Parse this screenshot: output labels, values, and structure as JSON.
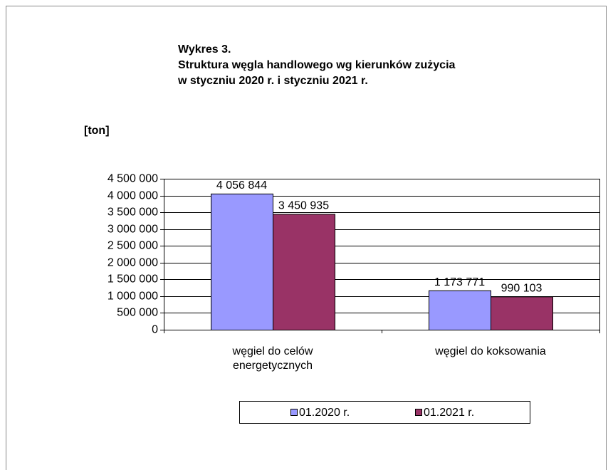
{
  "chart_data": {
    "type": "bar",
    "title": [
      "Wykres 3.",
      "Struktura węgla handlowego wg kierunków zużycia",
      "w styczniu 2020 r. i styczniu 2021 r."
    ],
    "y_label": "[ton]",
    "categories": [
      "węgiel do celów energetycznych",
      "węgiel do koksowania"
    ],
    "series": [
      {
        "name": "01.2020 r.",
        "color": "#9999ff",
        "values": [
          4056844,
          1173771
        ],
        "value_labels": [
          "4 056 844",
          "1 173 771"
        ]
      },
      {
        "name": "01.2021 r.",
        "color": "#993366",
        "values": [
          3450935,
          990103
        ],
        "value_labels": [
          "3 450 935",
          "990 103"
        ]
      }
    ],
    "ylim": [
      0,
      4500000
    ],
    "yticks": [
      0,
      {
        "value": 500000,
        "label": "500 000"
      },
      {
        "value": 1000000,
        "label": "1 000 000"
      },
      {
        "value": 1500000,
        "label": "1 500 000"
      },
      {
        "value": 2000000,
        "label": "2 000 000"
      },
      {
        "value": 2500000,
        "label": "2 500 000"
      },
      {
        "value": 3000000,
        "label": "3 000 000"
      },
      {
        "value": 3500000,
        "label": "3 500 000"
      },
      {
        "value": 4000000,
        "label": "4 000 000"
      },
      {
        "value": 4500000,
        "label": "4 500 000"
      }
    ],
    "grid": true,
    "legend": "bottom"
  }
}
